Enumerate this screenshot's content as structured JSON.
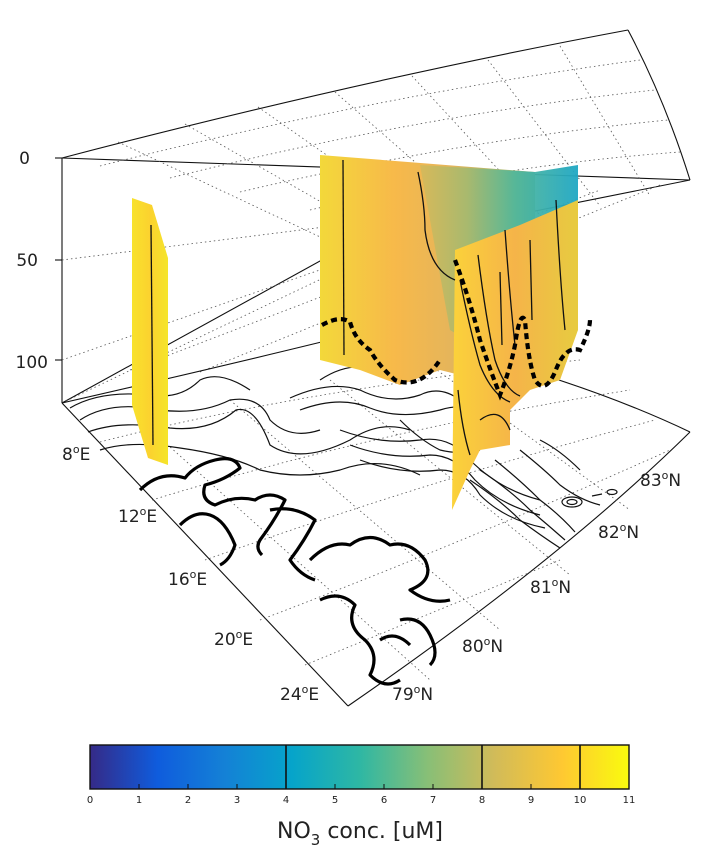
{
  "chart_data": {
    "type": "3d-section",
    "depth_ticks": [
      "0",
      "50",
      "100"
    ],
    "lon_ticks": [
      "8",
      "12",
      "16",
      "20",
      "24"
    ],
    "lon_suffix": "E",
    "lat_ticks": [
      "79",
      "80",
      "81",
      "82",
      "83"
    ],
    "lat_suffix": "N",
    "degree_mark": "o",
    "colorbar": {
      "ticks": [
        "0",
        "1",
        "2",
        "3",
        "4",
        "5",
        "6",
        "7",
        "8",
        "9",
        "10",
        "11"
      ],
      "range": [
        0,
        11
      ],
      "contour_levels": [
        4,
        8,
        10
      ],
      "label_main": "NO",
      "label_sub": "3",
      "label_rest": " conc. [uM]",
      "colormap": "parula",
      "stops": [
        "#352a87",
        "#0f5cdd",
        "#1481d6",
        "#06a4ca",
        "#2eb7a4",
        "#87bf77",
        "#d1bb59",
        "#fec832",
        "#f9fb0e"
      ]
    }
  }
}
